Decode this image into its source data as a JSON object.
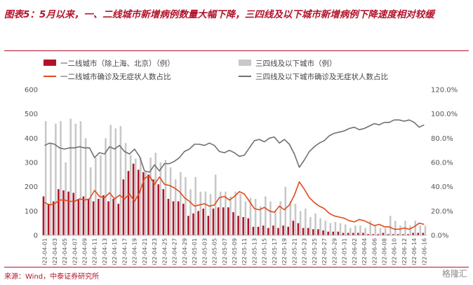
{
  "title": "图表5：5月以来，一、二线城市新增病例数量大幅下降，三四线及以下城市新增病例下降速度相对较缓",
  "source": "来源：Wind，中泰证券研究所",
  "watermark": "格隆汇",
  "colors": {
    "title": "#b3132a",
    "bar_tier12": "#b3132a",
    "bar_tier34": "#c8c8c8",
    "line_tier12": "#e04a1a",
    "line_tier34": "#707070",
    "axis_text": "#555555"
  },
  "chart_data": {
    "type": "bar+line",
    "categories": [
      "2022-04-01",
      "2022-04-02",
      "2022-04-03",
      "2022-04-04",
      "2022-04-05",
      "2022-04-06",
      "2022-04-07",
      "2022-04-08",
      "2022-04-09",
      "2022-04-10",
      "2022-04-11",
      "2022-04-12",
      "2022-04-13",
      "2022-04-14",
      "2022-04-15",
      "2022-04-16",
      "2022-04-17",
      "2022-04-18",
      "2022-04-19",
      "2022-04-20",
      "2022-04-21",
      "2022-04-22",
      "2022-04-23",
      "2022-04-24",
      "2022-04-25",
      "2022-04-26",
      "2022-04-27",
      "2022-04-28",
      "2022-04-29",
      "2022-04-30",
      "2022-05-01",
      "2022-05-02",
      "2022-05-03",
      "2022-05-04",
      "2022-05-05",
      "2022-05-06",
      "2022-05-07",
      "2022-05-08",
      "2022-05-09",
      "2022-05-10",
      "2022-05-11",
      "2022-05-12",
      "2022-05-13",
      "2022-05-14",
      "2022-05-15",
      "2022-05-16",
      "2022-05-17",
      "2022-05-18",
      "2022-05-19",
      "2022-05-20",
      "2022-05-21",
      "2022-05-22",
      "2022-05-23",
      "2022-05-24",
      "2022-05-25",
      "2022-05-26",
      "2022-05-27",
      "2022-05-28",
      "2022-05-29",
      "2022-05-30",
      "2022-05-31",
      "2022-06-01",
      "2022-06-02",
      "2022-06-03",
      "2022-06-04",
      "2022-06-05",
      "2022-06-06",
      "2022-06-07",
      "2022-06-08",
      "2022-06-09",
      "2022-06-10",
      "2022-06-11",
      "2022-06-12",
      "2022-06-13",
      "2022-06-14",
      "2022-06-15",
      "2022-06-16"
    ],
    "tick_labels": [
      "2022-04-01",
      "2022-04-03",
      "2022-04-05",
      "2022-04-07",
      "2022-04-09",
      "2022-04-11",
      "2022-04-13",
      "2022-04-15",
      "2022-04-17",
      "2022-04-19",
      "2022-04-21",
      "2022-04-23",
      "2022-04-25",
      "2022-04-27",
      "2022-04-29",
      "2022-05-01",
      "2022-05-03",
      "2022-05-05",
      "2022-05-07",
      "2022-05-09",
      "2022-05-11",
      "2022-05-13",
      "2022-05-15",
      "2022-05-17",
      "2022-05-19",
      "2022-05-21",
      "2022-05-23",
      "2022-05-25",
      "2022-05-27",
      "2022-05-29",
      "2022-05-31",
      "2022-06-02",
      "2022-06-04",
      "2022-06-06",
      "2022-06-08",
      "2022-06-10",
      "2022-06-12",
      "2022-06-14",
      "2022-06-16"
    ],
    "left_axis": {
      "min": 0,
      "max": 600,
      "ticks": [
        "0",
        "100",
        "200",
        "300",
        "400",
        "500",
        "600"
      ]
    },
    "right_axis": {
      "min": 0,
      "max": 120,
      "ticks": [
        "0.0%",
        "20.0%",
        "40.0%",
        "60.0%",
        "80.0%",
        "100.0%",
        "120.0%"
      ]
    },
    "series": [
      {
        "name": "一二线城市（除上海、北京）（例）",
        "type": "bar",
        "axis": "left",
        "values": [
          160,
          130,
          140,
          190,
          185,
          180,
          175,
          150,
          160,
          150,
          140,
          150,
          165,
          140,
          150,
          130,
          230,
          265,
          295,
          270,
          260,
          250,
          230,
          210,
          190,
          150,
          140,
          140,
          130,
          80,
          90,
          100,
          110,
          80,
          110,
          115,
          115,
          115,
          95,
          80,
          75,
          70,
          35,
          35,
          40,
          30,
          40,
          30,
          40,
          35,
          60,
          50,
          30,
          30,
          25,
          25,
          20,
          15,
          15,
          15,
          10,
          10,
          10,
          10,
          10,
          5,
          5,
          5,
          10,
          5,
          5,
          5,
          5,
          5,
          10,
          10,
          10
        ]
      },
      {
        "name": "三四线及以下城市（例）",
        "type": "bar",
        "axis": "left",
        "values": [
          470,
          380,
          460,
          470,
          300,
          480,
          460,
          470,
          400,
          280,
          320,
          330,
          400,
          455,
          440,
          450,
          380,
          330,
          315,
          320,
          260,
          320,
          340,
          300,
          310,
          280,
          230,
          260,
          240,
          190,
          240,
          180,
          180,
          170,
          250,
          180,
          180,
          160,
          180,
          170,
          140,
          155,
          150,
          120,
          160,
          140,
          100,
          140,
          200,
          140,
          130,
          100,
          110,
          75,
          90,
          70,
          60,
          50,
          55,
          50,
          45,
          30,
          40,
          40,
          30,
          60,
          40,
          30,
          30,
          80,
          60,
          40,
          60,
          40,
          60,
          40,
          40
        ]
      },
      {
        "name": "一二线城市确诊及无症状人数占比",
        "type": "line",
        "axis": "right",
        "values": [
          27,
          25,
          26,
          29,
          29,
          28,
          28,
          30,
          29,
          30,
          37,
          32,
          31,
          35,
          30,
          33,
          30,
          34,
          28,
          35,
          47,
          49,
          42,
          48,
          42,
          41,
          39,
          36,
          31,
          28,
          24,
          25,
          26,
          24,
          25,
          31,
          32,
          29,
          32,
          36,
          34,
          28,
          22,
          21,
          23,
          20,
          19,
          24,
          21,
          25,
          33,
          44,
          38,
          31,
          27,
          24,
          22,
          18,
          16,
          15,
          14,
          12,
          11,
          13,
          12,
          10,
          8,
          9,
          7,
          7,
          5,
          5,
          6,
          5,
          7,
          10,
          9
        ]
      },
      {
        "name": "三四线及以下城市确诊及无症状人数占比",
        "type": "line",
        "axis": "right",
        "values": [
          74,
          76,
          75,
          72,
          71,
          72,
          72,
          73,
          72,
          72,
          64,
          68,
          67,
          73,
          71,
          74,
          69,
          67,
          71,
          65,
          53,
          52,
          58,
          53,
          59,
          59,
          61,
          64,
          69,
          71,
          75,
          75,
          74,
          76,
          74,
          69,
          68,
          70,
          68,
          65,
          66,
          72,
          78,
          79,
          77,
          80,
          81,
          76,
          79,
          75,
          67,
          56,
          62,
          69,
          73,
          76,
          78,
          82,
          84,
          85,
          86,
          88,
          89,
          87,
          88,
          90,
          92,
          91,
          93,
          93,
          95,
          95,
          94,
          95,
          93,
          89,
          91
        ]
      }
    ]
  }
}
